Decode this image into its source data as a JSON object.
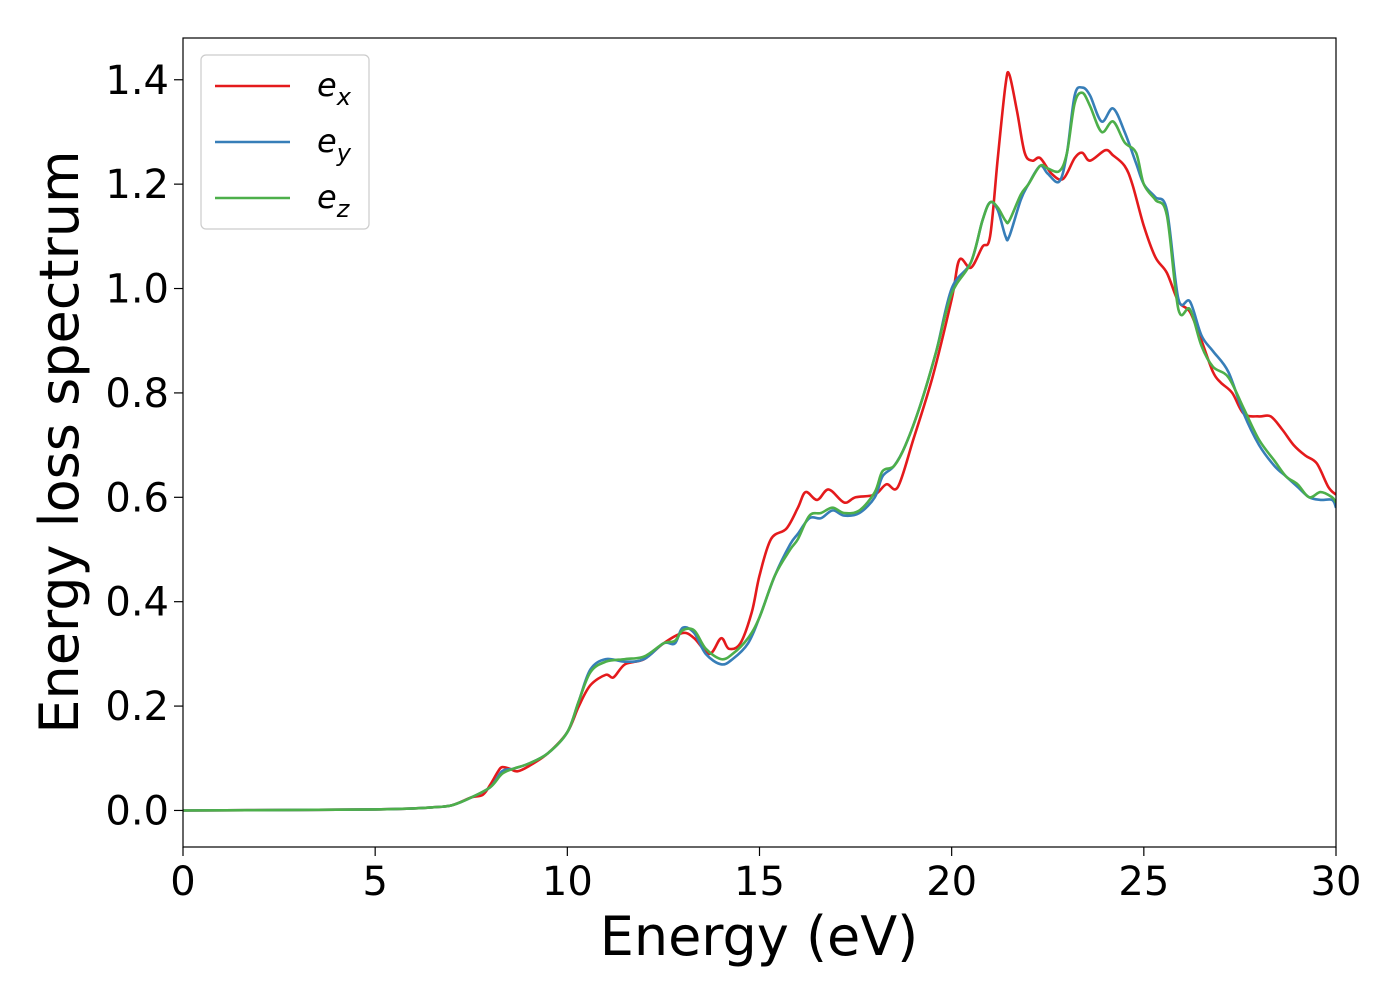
{
  "chart_data": {
    "type": "line",
    "xlabel": "Energy (eV)",
    "ylabel": "Energy loss spectrum",
    "xlim": [
      0,
      30
    ],
    "ylim": [
      -0.07,
      1.48
    ],
    "xticks": [
      "0",
      "5",
      "10",
      "15",
      "20",
      "25",
      "30"
    ],
    "yticks": [
      "0.0",
      "0.2",
      "0.4",
      "0.6",
      "0.8",
      "1.0",
      "1.2",
      "1.4"
    ],
    "grid": false,
    "legend_position": "top-left",
    "series": [
      {
        "name": "e",
        "subscript": "x",
        "color": "#e41a1c",
        "points": [
          [
            0,
            0
          ],
          [
            3,
            0.001
          ],
          [
            5,
            0.002
          ],
          [
            6,
            0.004
          ],
          [
            6.5,
            0.006
          ],
          [
            7,
            0.01
          ],
          [
            7.5,
            0.025
          ],
          [
            7.8,
            0.03
          ],
          [
            8,
            0.05
          ],
          [
            8.2,
            0.075
          ],
          [
            8.3,
            0.083
          ],
          [
            8.5,
            0.08
          ],
          [
            8.7,
            0.075
          ],
          [
            9,
            0.085
          ],
          [
            9.5,
            0.11
          ],
          [
            10,
            0.15
          ],
          [
            10.3,
            0.2
          ],
          [
            10.6,
            0.24
          ],
          [
            11,
            0.26
          ],
          [
            11.2,
            0.255
          ],
          [
            11.5,
            0.28
          ],
          [
            12,
            0.29
          ],
          [
            12.5,
            0.32
          ],
          [
            13,
            0.34
          ],
          [
            13.3,
            0.33
          ],
          [
            13.7,
            0.3
          ],
          [
            14,
            0.33
          ],
          [
            14.2,
            0.31
          ],
          [
            14.5,
            0.32
          ],
          [
            14.8,
            0.38
          ],
          [
            15,
            0.45
          ],
          [
            15.3,
            0.52
          ],
          [
            15.7,
            0.54
          ],
          [
            16,
            0.58
          ],
          [
            16.2,
            0.61
          ],
          [
            16.5,
            0.595
          ],
          [
            16.8,
            0.615
          ],
          [
            17.2,
            0.59
          ],
          [
            17.5,
            0.6
          ],
          [
            18,
            0.605
          ],
          [
            18.3,
            0.625
          ],
          [
            18.6,
            0.62
          ],
          [
            19,
            0.71
          ],
          [
            19.5,
            0.83
          ],
          [
            20,
            0.98
          ],
          [
            20.2,
            1.055
          ],
          [
            20.5,
            1.04
          ],
          [
            20.8,
            1.08
          ],
          [
            21,
            1.1
          ],
          [
            21.2,
            1.25
          ],
          [
            21.4,
            1.39
          ],
          [
            21.5,
            1.41
          ],
          [
            21.7,
            1.34
          ],
          [
            21.9,
            1.26
          ],
          [
            22.1,
            1.245
          ],
          [
            22.3,
            1.25
          ],
          [
            22.6,
            1.22
          ],
          [
            22.9,
            1.21
          ],
          [
            23.2,
            1.25
          ],
          [
            23.4,
            1.26
          ],
          [
            23.6,
            1.245
          ],
          [
            24,
            1.265
          ],
          [
            24.2,
            1.255
          ],
          [
            24.5,
            1.235
          ],
          [
            24.7,
            1.2
          ],
          [
            25,
            1.12
          ],
          [
            25.3,
            1.06
          ],
          [
            25.6,
            1.03
          ],
          [
            25.9,
            0.975
          ],
          [
            26.2,
            0.955
          ],
          [
            26.5,
            0.9
          ],
          [
            26.8,
            0.84
          ],
          [
            27,
            0.82
          ],
          [
            27.3,
            0.8
          ],
          [
            27.6,
            0.76
          ],
          [
            28,
            0.755
          ],
          [
            28.3,
            0.755
          ],
          [
            28.6,
            0.73
          ],
          [
            28.9,
            0.7
          ],
          [
            29.2,
            0.68
          ],
          [
            29.5,
            0.665
          ],
          [
            29.8,
            0.62
          ],
          [
            30,
            0.605
          ]
        ]
      },
      {
        "name": "e",
        "subscript": "y",
        "color": "#377eb8",
        "points": [
          [
            0,
            0
          ],
          [
            3,
            0.001
          ],
          [
            5,
            0.002
          ],
          [
            6,
            0.004
          ],
          [
            6.5,
            0.006
          ],
          [
            7,
            0.01
          ],
          [
            7.5,
            0.025
          ],
          [
            8,
            0.045
          ],
          [
            8.3,
            0.075
          ],
          [
            8.6,
            0.08
          ],
          [
            9,
            0.09
          ],
          [
            9.5,
            0.11
          ],
          [
            10,
            0.15
          ],
          [
            10.3,
            0.21
          ],
          [
            10.6,
            0.27
          ],
          [
            11,
            0.29
          ],
          [
            11.5,
            0.285
          ],
          [
            12,
            0.29
          ],
          [
            12.5,
            0.32
          ],
          [
            12.8,
            0.32
          ],
          [
            13,
            0.35
          ],
          [
            13.3,
            0.34
          ],
          [
            13.6,
            0.3
          ],
          [
            14,
            0.28
          ],
          [
            14.3,
            0.29
          ],
          [
            14.7,
            0.32
          ],
          [
            15,
            0.37
          ],
          [
            15.4,
            0.45
          ],
          [
            15.8,
            0.51
          ],
          [
            16,
            0.53
          ],
          [
            16.3,
            0.56
          ],
          [
            16.6,
            0.56
          ],
          [
            16.9,
            0.575
          ],
          [
            17.2,
            0.565
          ],
          [
            17.6,
            0.57
          ],
          [
            18,
            0.6
          ],
          [
            18.2,
            0.64
          ],
          [
            18.5,
            0.66
          ],
          [
            18.8,
            0.7
          ],
          [
            19.2,
            0.78
          ],
          [
            19.6,
            0.88
          ],
          [
            20,
            1.0
          ],
          [
            20.5,
            1.05
          ],
          [
            20.8,
            1.13
          ],
          [
            21,
            1.165
          ],
          [
            21.2,
            1.15
          ],
          [
            21.4,
            1.1
          ],
          [
            21.5,
            1.1
          ],
          [
            21.8,
            1.17
          ],
          [
            22,
            1.2
          ],
          [
            22.3,
            1.235
          ],
          [
            22.5,
            1.22
          ],
          [
            22.8,
            1.205
          ],
          [
            23,
            1.26
          ],
          [
            23.2,
            1.37
          ],
          [
            23.4,
            1.385
          ],
          [
            23.6,
            1.37
          ],
          [
            23.9,
            1.32
          ],
          [
            24.2,
            1.345
          ],
          [
            24.5,
            1.3
          ],
          [
            24.8,
            1.24
          ],
          [
            25,
            1.2
          ],
          [
            25.3,
            1.175
          ],
          [
            25.6,
            1.15
          ],
          [
            25.9,
            0.98
          ],
          [
            26.2,
            0.975
          ],
          [
            26.5,
            0.91
          ],
          [
            26.8,
            0.88
          ],
          [
            27.2,
            0.84
          ],
          [
            27.6,
            0.76
          ],
          [
            28,
            0.7
          ],
          [
            28.4,
            0.66
          ],
          [
            28.7,
            0.64
          ],
          [
            29,
            0.62
          ],
          [
            29.3,
            0.6
          ],
          [
            29.6,
            0.595
          ],
          [
            29.9,
            0.595
          ],
          [
            30,
            0.58
          ]
        ]
      },
      {
        "name": "e",
        "subscript": "z",
        "color": "#4daf4a",
        "points": [
          [
            0,
            0
          ],
          [
            3,
            0.001
          ],
          [
            5,
            0.002
          ],
          [
            6,
            0.004
          ],
          [
            6.5,
            0.006
          ],
          [
            7,
            0.01
          ],
          [
            7.5,
            0.025
          ],
          [
            8,
            0.045
          ],
          [
            8.3,
            0.07
          ],
          [
            8.6,
            0.08
          ],
          [
            9,
            0.09
          ],
          [
            9.5,
            0.11
          ],
          [
            10,
            0.15
          ],
          [
            10.3,
            0.21
          ],
          [
            10.6,
            0.265
          ],
          [
            11,
            0.285
          ],
          [
            11.5,
            0.29
          ],
          [
            12,
            0.295
          ],
          [
            12.5,
            0.32
          ],
          [
            12.8,
            0.325
          ],
          [
            13,
            0.345
          ],
          [
            13.3,
            0.345
          ],
          [
            13.6,
            0.31
          ],
          [
            14,
            0.29
          ],
          [
            14.3,
            0.3
          ],
          [
            14.7,
            0.33
          ],
          [
            15,
            0.37
          ],
          [
            15.4,
            0.45
          ],
          [
            15.8,
            0.5
          ],
          [
            16,
            0.52
          ],
          [
            16.3,
            0.565
          ],
          [
            16.6,
            0.57
          ],
          [
            16.9,
            0.58
          ],
          [
            17.2,
            0.57
          ],
          [
            17.6,
            0.575
          ],
          [
            18,
            0.61
          ],
          [
            18.2,
            0.65
          ],
          [
            18.5,
            0.66
          ],
          [
            18.8,
            0.7
          ],
          [
            19.2,
            0.78
          ],
          [
            19.6,
            0.88
          ],
          [
            20,
            0.99
          ],
          [
            20.5,
            1.05
          ],
          [
            20.8,
            1.13
          ],
          [
            21,
            1.165
          ],
          [
            21.2,
            1.155
          ],
          [
            21.4,
            1.13
          ],
          [
            21.5,
            1.13
          ],
          [
            21.8,
            1.18
          ],
          [
            22,
            1.2
          ],
          [
            22.3,
            1.235
          ],
          [
            22.5,
            1.23
          ],
          [
            22.8,
            1.225
          ],
          [
            23,
            1.26
          ],
          [
            23.2,
            1.355
          ],
          [
            23.4,
            1.375
          ],
          [
            23.6,
            1.35
          ],
          [
            23.9,
            1.3
          ],
          [
            24.2,
            1.32
          ],
          [
            24.5,
            1.28
          ],
          [
            24.8,
            1.26
          ],
          [
            25,
            1.2
          ],
          [
            25.3,
            1.17
          ],
          [
            25.6,
            1.14
          ],
          [
            25.9,
            0.96
          ],
          [
            26.2,
            0.96
          ],
          [
            26.5,
            0.89
          ],
          [
            26.8,
            0.85
          ],
          [
            27.2,
            0.83
          ],
          [
            27.6,
            0.77
          ],
          [
            28,
            0.71
          ],
          [
            28.4,
            0.67
          ],
          [
            28.7,
            0.64
          ],
          [
            29,
            0.625
          ],
          [
            29.3,
            0.6
          ],
          [
            29.6,
            0.61
          ],
          [
            29.9,
            0.6
          ],
          [
            30,
            0.59
          ]
        ]
      }
    ]
  }
}
